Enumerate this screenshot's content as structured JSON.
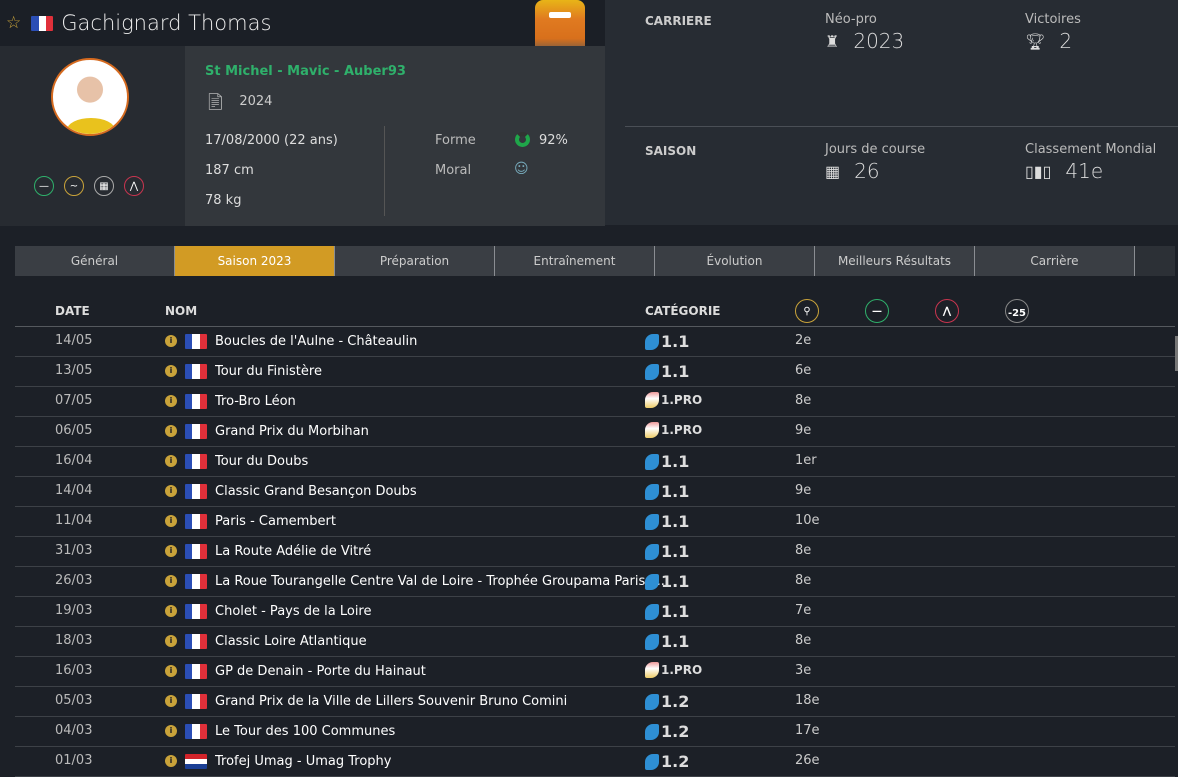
{
  "rider": {
    "name": "Gachignard Thomas",
    "team": "St Michel - Mavic - Auber93",
    "contract_end": "2024",
    "birth": "17/08/2000 (22 ans)",
    "height": "187 cm",
    "weight": "78 kg",
    "forme_label": "Forme",
    "forme_value": "92%",
    "moral_label": "Moral",
    "moral_icon": "smiley-icon"
  },
  "career": {
    "section": "CARRIERE",
    "neo_label": "Néo-pro",
    "neo_value": "2023",
    "wins_label": "Victoires",
    "wins_value": "2"
  },
  "season": {
    "section": "SAISON",
    "days_label": "Jours de course",
    "days_value": "26",
    "rank_label": "Classement Mondial",
    "rank_value": "41e"
  },
  "tabs": [
    "Général",
    "Saison 2023",
    "Préparation",
    "Entraînement",
    "Évolution",
    "Meilleurs Résultats",
    "Carrière"
  ],
  "active_tab": 1,
  "table": {
    "headers": {
      "date": "DATE",
      "name": "NOM",
      "category": "CATÉGORIE",
      "under25": "-25"
    },
    "rows": [
      {
        "date": "14/05",
        "flag": "fr",
        "name": "Boucles de l'Aulne - Châteaulin",
        "cat": "1.1",
        "result": "2e"
      },
      {
        "date": "13/05",
        "flag": "fr",
        "name": "Tour du Finistère",
        "cat": "1.1",
        "result": "6e"
      },
      {
        "date": "07/05",
        "flag": "fr",
        "name": "Tro-Bro Léon",
        "cat": "1.PRO",
        "result": "8e"
      },
      {
        "date": "06/05",
        "flag": "fr",
        "name": "Grand Prix du Morbihan",
        "cat": "1.PRO",
        "result": "9e"
      },
      {
        "date": "16/04",
        "flag": "fr",
        "name": "Tour du Doubs",
        "cat": "1.1",
        "result": "1er"
      },
      {
        "date": "14/04",
        "flag": "fr",
        "name": "Classic Grand Besançon Doubs",
        "cat": "1.1",
        "result": "9e"
      },
      {
        "date": "11/04",
        "flag": "fr",
        "name": "Paris - Camembert",
        "cat": "1.1",
        "result": "10e"
      },
      {
        "date": "31/03",
        "flag": "fr",
        "name": "La Route Adélie de Vitré",
        "cat": "1.1",
        "result": "8e"
      },
      {
        "date": "26/03",
        "flag": "fr",
        "name": "La Roue Tourangelle Centre Val de Loire - Trophée Groupama Paris V...",
        "cat": "1.1",
        "result": "8e"
      },
      {
        "date": "19/03",
        "flag": "fr",
        "name": "Cholet - Pays de la Loire",
        "cat": "1.1",
        "result": "7e"
      },
      {
        "date": "18/03",
        "flag": "fr",
        "name": "Classic Loire Atlantique",
        "cat": "1.1",
        "result": "8e"
      },
      {
        "date": "16/03",
        "flag": "fr",
        "name": "GP de Denain - Porte du Hainaut",
        "cat": "1.PRO",
        "result": "3e"
      },
      {
        "date": "05/03",
        "flag": "fr",
        "name": "Grand Prix de la Ville de Lillers Souvenir Bruno Comini",
        "cat": "1.2",
        "result": "18e"
      },
      {
        "date": "04/03",
        "flag": "fr",
        "name": "Le Tour des 100 Communes",
        "cat": "1.2",
        "result": "17e"
      },
      {
        "date": "01/03",
        "flag": "hr",
        "name": "Trofej Umag - Umag Trophy",
        "cat": "1.2",
        "result": "26e"
      }
    ]
  },
  "colors": {
    "accent": "#d29b24",
    "team": "#2fb06b",
    "forme": "#1fa64a"
  }
}
